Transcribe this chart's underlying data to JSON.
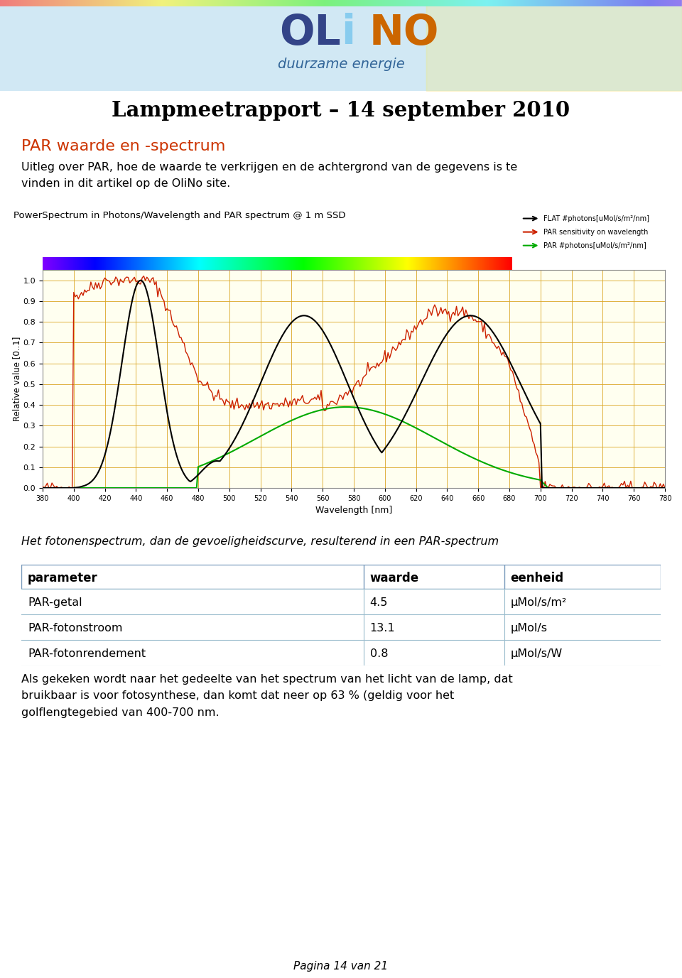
{
  "title": "Lampmeetrapport – 14 september 2010",
  "section_title": "PAR waarde en -spectrum",
  "section_title_color": "#CC3300",
  "intro_line1": "Uitleg over PAR, hoe de waarde te verkrijgen en de achtergrond van de gegevens is te",
  "intro_line2": "vinden in dit artikel op de OliNo site.",
  "chart_title": "PowerSpectrum in Photons/Wavelength and PAR spectrum @ 1 m SSD",
  "chart_xlabel": "Wavelength [nm]",
  "chart_ylabel": "Relative value [0..1]",
  "caption": "Het fotonenspectrum, dan de gevoeligheidscurve, resulterend in een PAR-spectrum",
  "table_headers": [
    "parameter",
    "waarde",
    "eenheid"
  ],
  "table_rows": [
    [
      "PAR-getal",
      "4.5",
      "μMol/s/m²"
    ],
    [
      "PAR-fotonstroom",
      "13.1",
      "μMol/s"
    ],
    [
      "PAR-fotonrendement",
      "0.8",
      "μMol/s/W"
    ]
  ],
  "footer_line1": "Als gekeken wordt naar het gedeelte van het spectrum van het licht van de lamp, dat",
  "footer_line2": "bruikbaar is voor fotosynthese, dan komt dat neer op 63 % (geldig voor het",
  "footer_line3": "golflengtegebied van 400-700 nm.",
  "page_footer": "Pagina 14 van 21",
  "chart_bg": "#FFFFF0",
  "chart_grid_color": "#DAA520",
  "table_header_bg": "#b0c8e0",
  "table_row_bg1": "#d8e8f4",
  "table_row_bg2": "#e8f2fa",
  "header_bg": "#cfe6f5",
  "col_splits": [
    0.535,
    0.755
  ]
}
